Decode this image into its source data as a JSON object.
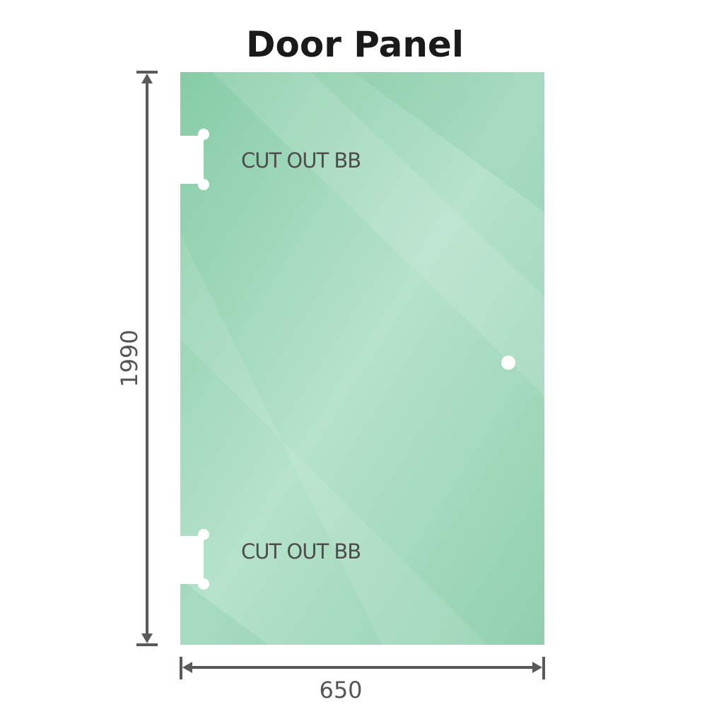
{
  "title": "Door Panel",
  "panel": {
    "glass_color": "#8fd0ad",
    "cutout_labels": [
      "CUT OUT BB",
      "CUT OUT BB"
    ]
  },
  "dimensions": {
    "height": "1990",
    "width": "650",
    "line_color": "#5a5a5a"
  }
}
